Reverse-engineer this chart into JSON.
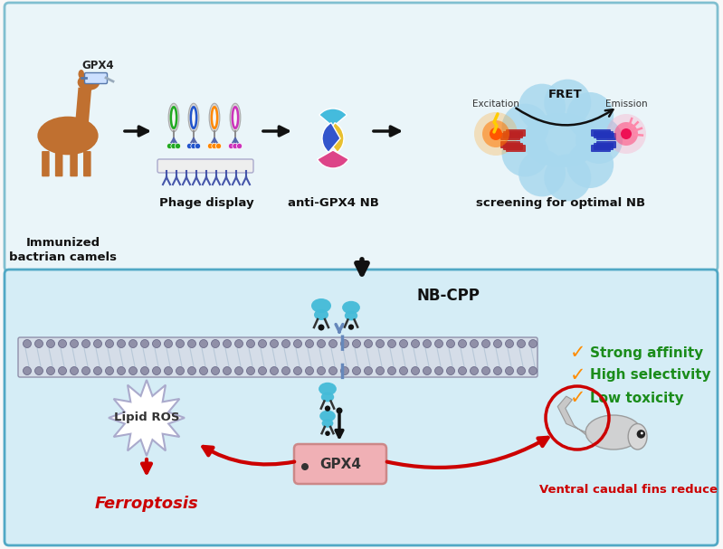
{
  "bg_outer": "#f8f8f8",
  "bg_top_panel": "#eaf5f9",
  "bg_bottom_panel": "#d5edf6",
  "border_top": "#80bfd0",
  "border_bottom": "#50a8c5",
  "label_immunized": "Immunized\nbactrian camels",
  "label_phage": "Phage display",
  "label_anti": "anti-GPX4 NB",
  "label_screening": "screening for optimal NB",
  "label_gpx4": "GPX4",
  "label_nbcpp": "NB-CPP",
  "label_fret": "FRET",
  "label_excitation": "Excitation",
  "label_emission": "Emission",
  "label_lipid": "Lipid ROS",
  "label_ferroptosis": "Ferroptosis",
  "label_ventral": "Ventral caudal fins reduce",
  "label_gpx4_box": "GPX4",
  "affinity_texts": [
    "Strong affinity",
    "High selectivity",
    "Low toxicity"
  ],
  "arrow_color": "#111111",
  "red_color": "#cc0000",
  "orange_check": "#ff8c00",
  "green_text": "#1a8c1a",
  "nb_color": "#44bbd8",
  "cloud_color": "#a8d8ee",
  "camel_color": "#c07030",
  "phage_colors": [
    "#22aa22",
    "#2255cc",
    "#ff8800",
    "#cc33bb"
  ],
  "mem_head_color": "#9090a8",
  "mem_body_color": "#d0d8e8",
  "gpx4_fill": "#f0b0b5",
  "starburst_edge": "#9999bb"
}
